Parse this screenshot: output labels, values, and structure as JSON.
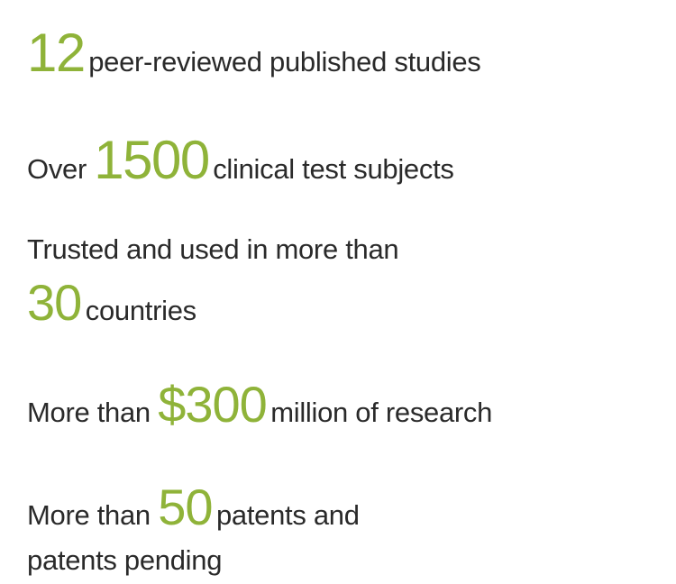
{
  "type": "infographic",
  "background_color": "#ffffff",
  "colors": {
    "highlight": "#8fb339",
    "text": "#2a2a2a"
  },
  "typography": {
    "regular_fontsize": 31,
    "highlight_fontsize": 56,
    "highlight_large_fontsize": 60,
    "regular_weight": 400,
    "highlight_weight": 500
  },
  "stats": [
    {
      "number": "12",
      "after": " peer-reviewed published studies"
    },
    {
      "before": "Over ",
      "number": "1500",
      "after": " clinical test subjects"
    },
    {
      "line1": "Trusted and used in more than",
      "number": "30",
      "after": " countries"
    },
    {
      "before": "More than ",
      "number": "$300",
      "after": " million of research"
    },
    {
      "before": "More than ",
      "number": "50",
      "after": " patents and",
      "line2": "patents pending"
    }
  ]
}
